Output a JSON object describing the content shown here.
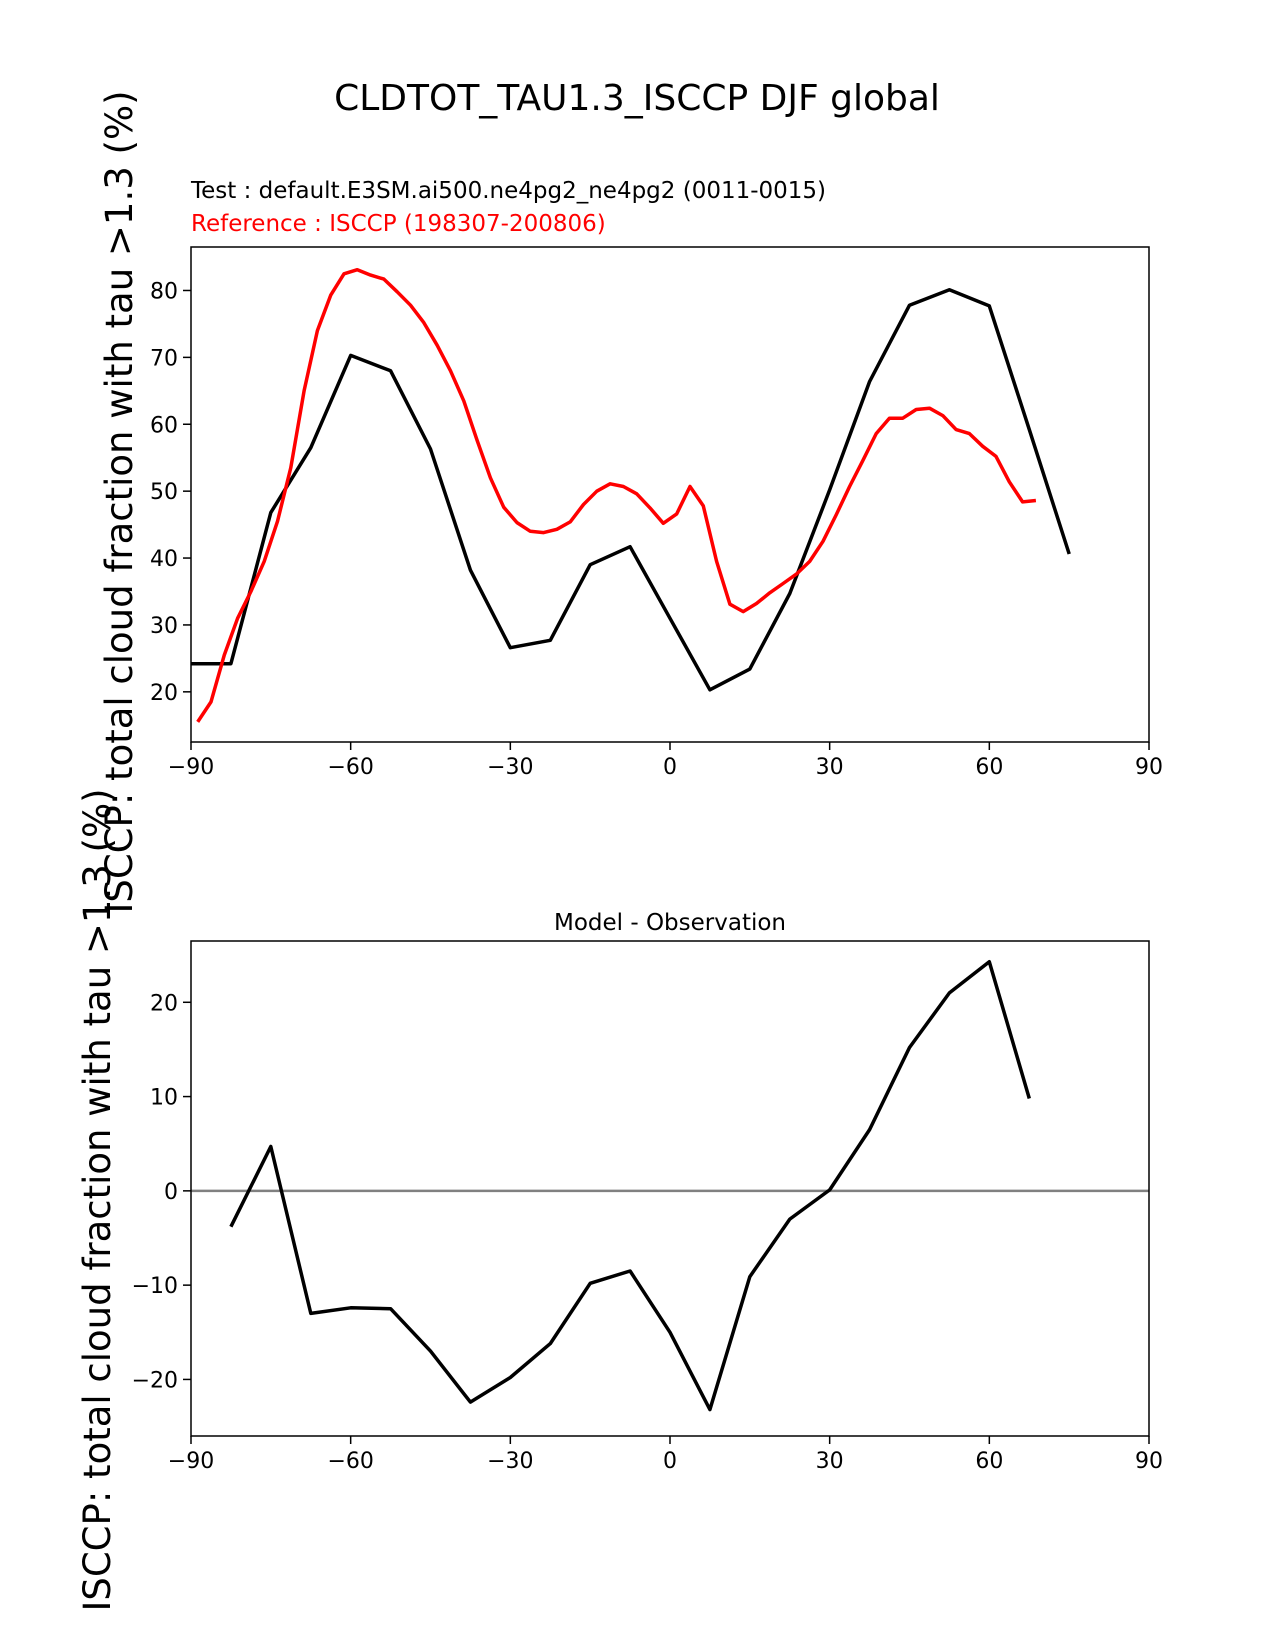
{
  "figure": {
    "suptitle": "CLDTOT_TAU1.3_ISCCP DJF global",
    "test_label": "Test : default.E3SM.ai500.ne4pg2_ne4pg2 (0011-0015)",
    "ref_label": "Reference : ISCCP (198307-200806)",
    "ylabel": "ISCCP: total cloud fraction with tau >1.3 (%)"
  },
  "colors": {
    "test": "#000000",
    "reference": "#ff0000",
    "zero_line": "#808080",
    "axes": "#000000"
  },
  "chart_data": [
    {
      "type": "line",
      "title": "",
      "xlabel": "",
      "ylabel": "ISCCP: total cloud fraction with tau >1.3 (%)",
      "xlim": [
        -90,
        90
      ],
      "ylim": [
        12.5,
        86.5
      ],
      "xticks": [
        -90,
        -60,
        -30,
        0,
        30,
        60,
        90
      ],
      "xticklabels": [
        "−90",
        "−60",
        "−30",
        "0",
        "30",
        "60",
        "90"
      ],
      "yticks": [
        20,
        30,
        40,
        50,
        60,
        70,
        80
      ],
      "yticklabels": [
        "20",
        "30",
        "40",
        "50",
        "60",
        "70",
        "80"
      ],
      "series": [
        {
          "name": "Test",
          "color": "#000000",
          "x": [
            -90,
            -82.5,
            -75,
            -67.5,
            -60,
            -52.5,
            -45,
            -37.5,
            -30,
            -22.5,
            -15,
            -7.5,
            0,
            7.5,
            15,
            22.5,
            30,
            37.5,
            45,
            52.5,
            60,
            67.5,
            75
          ],
          "y": [
            24.2,
            24.2,
            46.8,
            56.5,
            70.3,
            68.0,
            56.3,
            38.2,
            26.6,
            27.7,
            39.0,
            41.7,
            31.0,
            20.3,
            23.4,
            34.7,
            50.2,
            66.4,
            77.8,
            80.1,
            77.7,
            59.2,
            40.6
          ]
        },
        {
          "name": "Reference",
          "color": "#ff0000",
          "x": [
            -88.75,
            -86.25,
            -83.75,
            -81.25,
            -78.75,
            -76.25,
            -73.75,
            -71.25,
            -68.75,
            -66.25,
            -63.75,
            -61.25,
            -58.75,
            -56.25,
            -53.75,
            -51.25,
            -48.75,
            -46.25,
            -43.75,
            -41.25,
            -38.75,
            -36.25,
            -33.75,
            -31.25,
            -28.75,
            -26.25,
            -23.75,
            -21.25,
            -18.75,
            -16.25,
            -13.75,
            -11.25,
            -8.75,
            -6.25,
            -3.75,
            -1.25,
            1.25,
            3.75,
            6.25,
            8.75,
            11.25,
            13.75,
            16.25,
            18.75,
            21.25,
            23.75,
            26.25,
            28.75,
            31.25,
            33.75,
            36.25,
            38.75,
            41.25,
            43.75,
            46.25,
            48.75,
            51.25,
            53.75,
            56.25,
            58.75,
            61.25,
            63.75,
            66.25,
            68.75
          ],
          "y": [
            15.5,
            18.5,
            25.5,
            31.0,
            35.0,
            39.5,
            45.5,
            53.5,
            65.0,
            74.0,
            79.3,
            82.5,
            83.1,
            82.3,
            81.7,
            79.8,
            77.8,
            75.2,
            71.8,
            68.0,
            63.5,
            57.6,
            52.0,
            47.6,
            45.3,
            44.0,
            43.8,
            44.3,
            45.4,
            48.0,
            50.0,
            51.1,
            50.7,
            49.6,
            47.5,
            45.2,
            46.6,
            50.7,
            47.8,
            39.5,
            33.1,
            32.0,
            33.2,
            34.8,
            36.2,
            37.6,
            39.5,
            42.5,
            46.5,
            50.7,
            54.6,
            58.6,
            60.9,
            60.9,
            62.2,
            62.4,
            61.3,
            59.2,
            58.6,
            56.7,
            55.2,
            51.4,
            48.4,
            48.6
          ]
        }
      ]
    },
    {
      "type": "line",
      "title": "Model - Observation",
      "xlabel": "",
      "ylabel": "ISCCP: total cloud fraction with tau >1.3 (%)",
      "xlim": [
        -90,
        90
      ],
      "ylim": [
        -26,
        26.5
      ],
      "xticks": [
        -90,
        -60,
        -30,
        0,
        30,
        60,
        90
      ],
      "xticklabels": [
        "−90",
        "−60",
        "−30",
        "0",
        "30",
        "60",
        "90"
      ],
      "yticks": [
        -20,
        -10,
        0,
        10,
        20
      ],
      "yticklabels": [
        "−20",
        "−10",
        "0",
        "10",
        "20"
      ],
      "reference_line": 0,
      "series": [
        {
          "name": "Model - Observation",
          "color": "#000000",
          "x": [
            -82.5,
            -75,
            -67.5,
            -60,
            -52.5,
            -45,
            -37.5,
            -30,
            -22.5,
            -15,
            -7.5,
            0,
            7.5,
            15,
            22.5,
            30,
            37.5,
            45,
            52.5,
            60,
            67.5
          ],
          "y": [
            -3.8,
            4.7,
            -13.0,
            -12.4,
            -12.5,
            -17.0,
            -22.4,
            -19.8,
            -16.2,
            -9.8,
            -8.5,
            -15.0,
            -23.2,
            -9.1,
            -3.0,
            0.1,
            6.5,
            15.2,
            21.0,
            24.3,
            9.8
          ]
        }
      ]
    }
  ]
}
